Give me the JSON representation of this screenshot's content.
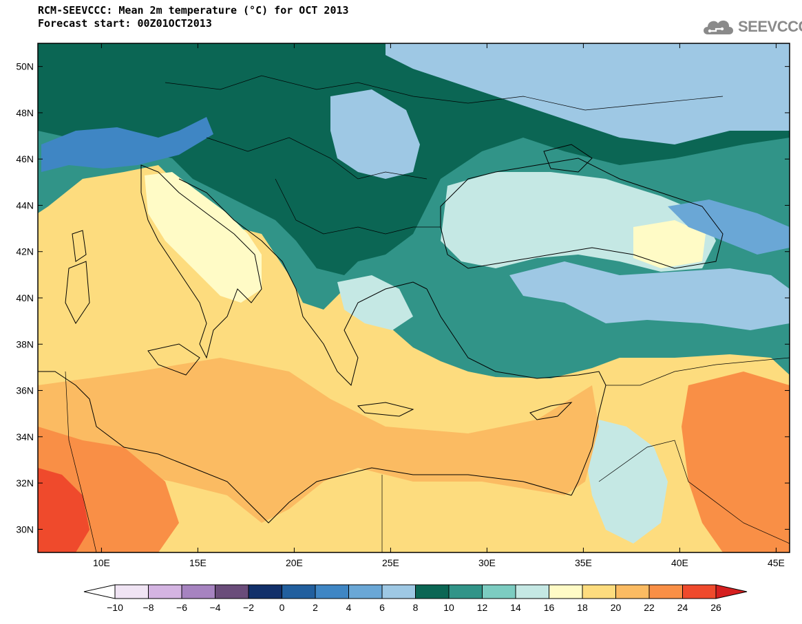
{
  "header": {
    "title": "RCM-SEEVCCC: Mean 2m temperature (°C) for OCT 2013",
    "subtitle": "Forecast start: 00Z01OCT2013"
  },
  "logo": {
    "text": "SEEVCCC",
    "icon": "cloud-icon",
    "color": "#8a8a8a"
  },
  "map": {
    "lon_range": [
      6.7,
      45.7
    ],
    "lat_range": [
      29.0,
      51.0
    ],
    "lon_ticks": [
      {
        "value": 10,
        "label": "10E"
      },
      {
        "value": 15,
        "label": "15E"
      },
      {
        "value": 20,
        "label": "20E"
      },
      {
        "value": 25,
        "label": "25E"
      },
      {
        "value": 30,
        "label": "30E"
      },
      {
        "value": 35,
        "label": "35E"
      },
      {
        "value": 40,
        "label": "40E"
      },
      {
        "value": 45,
        "label": "45E"
      }
    ],
    "lat_ticks": [
      {
        "value": 30,
        "label": "30N"
      },
      {
        "value": 32,
        "label": "32N"
      },
      {
        "value": 34,
        "label": "34N"
      },
      {
        "value": 36,
        "label": "36N"
      },
      {
        "value": 38,
        "label": "38N"
      },
      {
        "value": 40,
        "label": "40N"
      },
      {
        "value": 42,
        "label": "42N"
      },
      {
        "value": 44,
        "label": "44N"
      },
      {
        "value": 46,
        "label": "46N"
      },
      {
        "value": 48,
        "label": "48N"
      },
      {
        "value": 50,
        "label": "50N"
      }
    ]
  },
  "colorbar": {
    "bins": [
      {
        "from": -10,
        "to": -8,
        "color": "#f0e4f4"
      },
      {
        "from": -8,
        "to": -6,
        "color": "#d4b4e2"
      },
      {
        "from": -6,
        "to": -4,
        "color": "#a683c0"
      },
      {
        "from": -4,
        "to": -2,
        "color": "#6a4c7a"
      },
      {
        "from": -2,
        "to": 0,
        "color": "#12306a"
      },
      {
        "from": 0,
        "to": 2,
        "color": "#215f9e"
      },
      {
        "from": 2,
        "to": 4,
        "color": "#3f86c4"
      },
      {
        "from": 4,
        "to": 6,
        "color": "#6aa7d6"
      },
      {
        "from": 6,
        "to": 8,
        "color": "#9ec8e4"
      },
      {
        "from": 8,
        "to": 10,
        "color": "#0b6654"
      },
      {
        "from": 10,
        "to": 12,
        "color": "#319488"
      },
      {
        "from": 12,
        "to": 14,
        "color": "#7cccc1"
      },
      {
        "from": 14,
        "to": 16,
        "color": "#c5e8e4"
      },
      {
        "from": 16,
        "to": 18,
        "color": "#fffbc6"
      },
      {
        "from": 18,
        "to": 20,
        "color": "#fddc7e"
      },
      {
        "from": 20,
        "to": 22,
        "color": "#fbbb62"
      },
      {
        "from": 22,
        "to": 24,
        "color": "#f98f46"
      },
      {
        "from": 24,
        "to": 26,
        "color": "#ef4a2c"
      }
    ],
    "under_color": "#ffffff",
    "over_color": "#d51f1f",
    "tick_labels": [
      "−10",
      "−8",
      "−6",
      "−4",
      "−2",
      "0",
      "2",
      "4",
      "6",
      "8",
      "10",
      "12",
      "14",
      "16",
      "18",
      "20",
      "22",
      "24",
      "26"
    ]
  }
}
